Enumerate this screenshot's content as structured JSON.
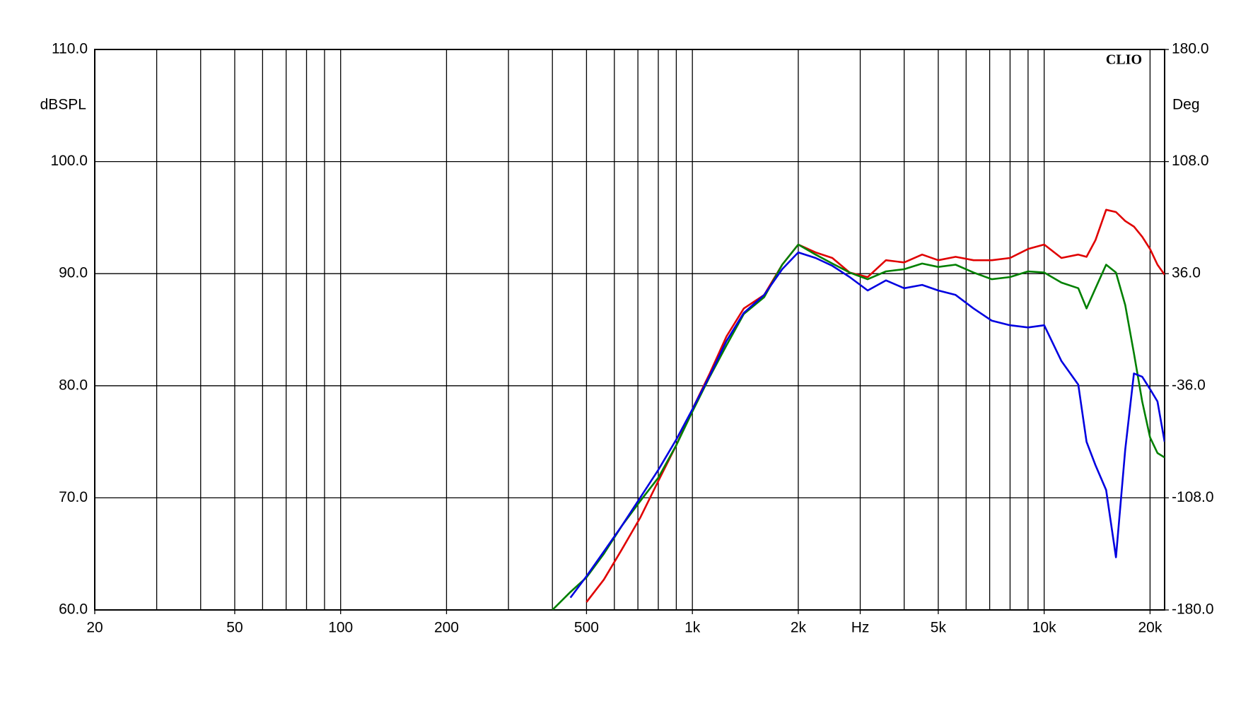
{
  "chart_data": {
    "type": "line",
    "y_label": "dBSPL",
    "y2_label": "Deg",
    "logo": "CLIO",
    "xscale": "log",
    "grid": true,
    "xlim": [
      20,
      22000
    ],
    "xticks": [
      20,
      50,
      100,
      200,
      500,
      {
        "value": 1000,
        "label": "1k"
      },
      {
        "value": 2000,
        "label": "2k"
      },
      {
        "value": 3000,
        "label": "Hz"
      },
      {
        "value": 5000,
        "label": "5k"
      },
      {
        "value": 10000,
        "label": "10k"
      },
      {
        "value": 20000,
        "label": "20k"
      }
    ],
    "xgrid": [
      20,
      30,
      40,
      50,
      60,
      70,
      80,
      90,
      100,
      200,
      300,
      400,
      500,
      600,
      700,
      800,
      900,
      1000,
      2000,
      3000,
      4000,
      5000,
      6000,
      7000,
      8000,
      9000,
      10000,
      20000
    ],
    "ylim": [
      60,
      110
    ],
    "yticks": [
      {
        "value": 60,
        "label": "60.0"
      },
      {
        "value": 70,
        "label": "70.0"
      },
      {
        "value": 80,
        "label": "80.0"
      },
      {
        "value": 90,
        "label": "90.0"
      },
      {
        "value": 100,
        "label": "100.0"
      },
      {
        "value": 110,
        "label": "110.0"
      }
    ],
    "y2lim": [
      -180,
      180
    ],
    "y2ticks": [
      {
        "value": -180,
        "label": "-180.0"
      },
      {
        "value": -108,
        "label": "-108.0"
      },
      {
        "value": -36,
        "label": "-36.0"
      },
      {
        "value": 36,
        "label": "36.0"
      },
      {
        "value": 108,
        "label": "108.0"
      },
      {
        "value": 180,
        "label": "180.0"
      }
    ],
    "x": [
      400,
      450,
      500,
      560,
      630,
      710,
      800,
      900,
      1000,
      1120,
      1250,
      1400,
      1600,
      1800,
      2000,
      2240,
      2500,
      2800,
      3150,
      3550,
      4000,
      4500,
      5000,
      5600,
      6300,
      7100,
      8000,
      9000,
      10000,
      11200,
      12500,
      13200,
      14000,
      15000,
      16000,
      17000,
      18000,
      19000,
      20000,
      21000,
      22000
    ],
    "series": [
      {
        "color": "#e00000",
        "values": [
          null,
          null,
          60.7,
          62.7,
          65.4,
          68.2,
          71.5,
          74.7,
          77.9,
          81.1,
          84.4,
          86.9,
          88.1,
          90.8,
          92.6,
          91.9,
          91.4,
          90.1,
          89.7,
          91.2,
          91.0,
          91.7,
          91.2,
          91.5,
          91.2,
          91.2,
          91.4,
          92.2,
          92.6,
          91.4,
          91.7,
          91.5,
          93.0,
          95.7,
          95.5,
          94.7,
          94.2,
          93.3,
          92.2,
          90.8,
          89.9
        ]
      },
      {
        "color": "#008000",
        "values": [
          60.0,
          61.6,
          62.9,
          65.0,
          67.5,
          69.7,
          71.8,
          74.7,
          77.7,
          80.8,
          83.6,
          86.4,
          87.9,
          90.8,
          92.6,
          91.7,
          90.9,
          90.1,
          89.5,
          90.2,
          90.4,
          90.9,
          90.6,
          90.8,
          90.1,
          89.5,
          89.7,
          90.2,
          90.1,
          89.2,
          88.7,
          86.9,
          88.7,
          90.8,
          90.1,
          87.2,
          82.9,
          78.6,
          75.4,
          74.0,
          73.6
        ]
      },
      {
        "color": "#0000e0",
        "values": [
          null,
          61.1,
          63.0,
          65.2,
          67.5,
          70.0,
          72.5,
          75.2,
          77.9,
          80.9,
          84.0,
          86.5,
          88.1,
          90.4,
          91.9,
          91.4,
          90.7,
          89.7,
          88.5,
          89.4,
          88.7,
          89.0,
          88.5,
          88.1,
          86.9,
          85.8,
          85.4,
          85.2,
          85.4,
          82.2,
          80.1,
          75.0,
          72.9,
          70.7,
          64.7,
          74.3,
          81.1,
          80.8,
          79.7,
          78.6,
          75.0
        ]
      }
    ]
  }
}
